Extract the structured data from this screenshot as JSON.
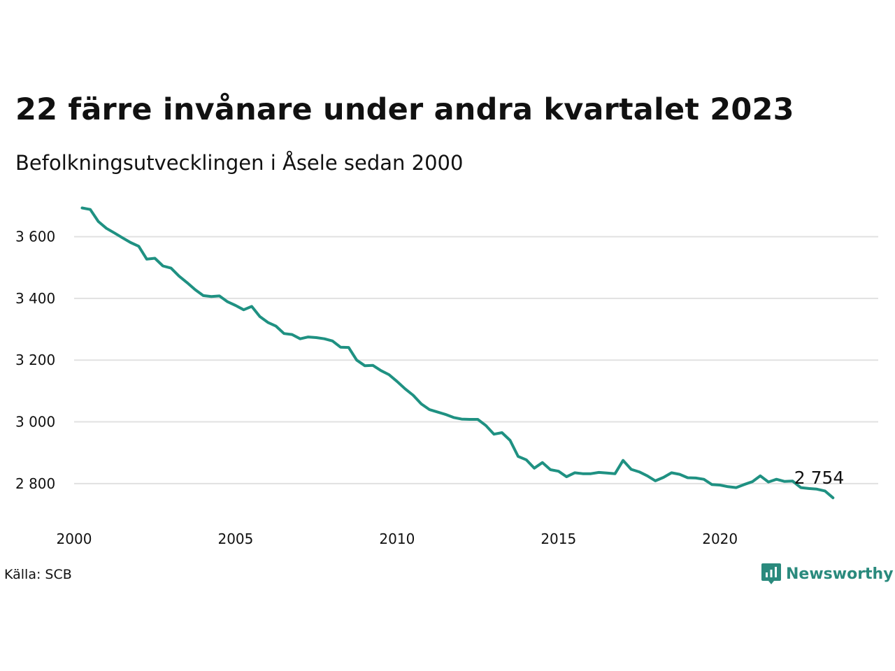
{
  "chart_data": {
    "type": "line",
    "title": "22 färre invånare under andra kvartalet 2023",
    "subtitle": "Befolkningsutvecklingen i Åsele sedan 2000",
    "xlim": [
      2000,
      2024.9
    ],
    "ylim": [
      2700,
      3710
    ],
    "x_ticks": [
      2000,
      2005,
      2010,
      2015,
      2020
    ],
    "x_tick_labels": [
      "2000",
      "2005",
      "2010",
      "2015",
      "2020"
    ],
    "y_ticks": [
      2800,
      3000,
      3200,
      3400,
      3600
    ],
    "y_tick_labels": [
      "2 800",
      "3 000",
      "3 200",
      "3 400",
      "3 600"
    ],
    "grid": "horizontal",
    "line_color": "#1f9182",
    "end_label": "2 754",
    "series": [
      {
        "x": [
          2000.25,
          2000.5,
          2000.75,
          2001.0,
          2001.25,
          2001.5,
          2001.75,
          2002.0,
          2002.25,
          2002.5,
          2002.75,
          2003.0,
          2003.25,
          2003.5,
          2003.75,
          2004.0,
          2004.25,
          2004.5,
          2004.75,
          2005.0,
          2005.25,
          2005.5,
          2005.75,
          2006.0,
          2006.25,
          2006.5,
          2006.75,
          2007.0,
          2007.25,
          2007.5,
          2007.75,
          2008.0,
          2008.25,
          2008.5,
          2008.75,
          2009.0,
          2009.25,
          2009.5,
          2009.75,
          2010.0,
          2010.25,
          2010.5,
          2010.75,
          2011.0,
          2011.25,
          2011.5,
          2011.75,
          2012.0,
          2012.25,
          2012.5,
          2012.75,
          2013.0,
          2013.25,
          2013.5,
          2013.75,
          2014.0,
          2014.25,
          2014.5,
          2014.75,
          2015.0,
          2015.25,
          2015.5,
          2015.75,
          2016.0,
          2016.25,
          2016.5,
          2016.75,
          2017.0,
          2017.25,
          2017.5,
          2017.75,
          2018.0,
          2018.25,
          2018.5,
          2018.75,
          2019.0,
          2019.25,
          2019.5,
          2019.75,
          2020.0,
          2020.25,
          2020.5,
          2020.75,
          2021.0,
          2021.25,
          2021.5,
          2021.75,
          2022.0,
          2022.25,
          2022.5,
          2022.75,
          2023.0,
          2023.25,
          2023.5
        ],
        "values": [
          3693,
          3688,
          3649,
          3627,
          3612,
          3596,
          3581,
          3569,
          3527,
          3530,
          3505,
          3498,
          3472,
          3451,
          3428,
          3409,
          3406,
          3408,
          3389,
          3377,
          3363,
          3374,
          3341,
          3322,
          3310,
          3286,
          3283,
          3269,
          3275,
          3273,
          3269,
          3262,
          3242,
          3241,
          3200,
          3182,
          3183,
          3166,
          3153,
          3131,
          3107,
          3086,
          3058,
          3040,
          3032,
          3024,
          3014,
          3009,
          3008,
          3008,
          2988,
          2960,
          2965,
          2940,
          2888,
          2877,
          2850,
          2868,
          2845,
          2840,
          2822,
          2835,
          2832,
          2832,
          2836,
          2834,
          2832,
          2875,
          2846,
          2838,
          2825,
          2809,
          2820,
          2835,
          2830,
          2819,
          2818,
          2814,
          2797,
          2795,
          2790,
          2787,
          2797,
          2806,
          2825,
          2805,
          2814,
          2807,
          2808,
          2787,
          2784,
          2782,
          2776,
          2754
        ]
      }
    ]
  },
  "source": "Källa: SCB",
  "brand": {
    "name": "Newsworthy",
    "icon": "newsworthy-logo-icon",
    "color": "#2a8a7d"
  }
}
